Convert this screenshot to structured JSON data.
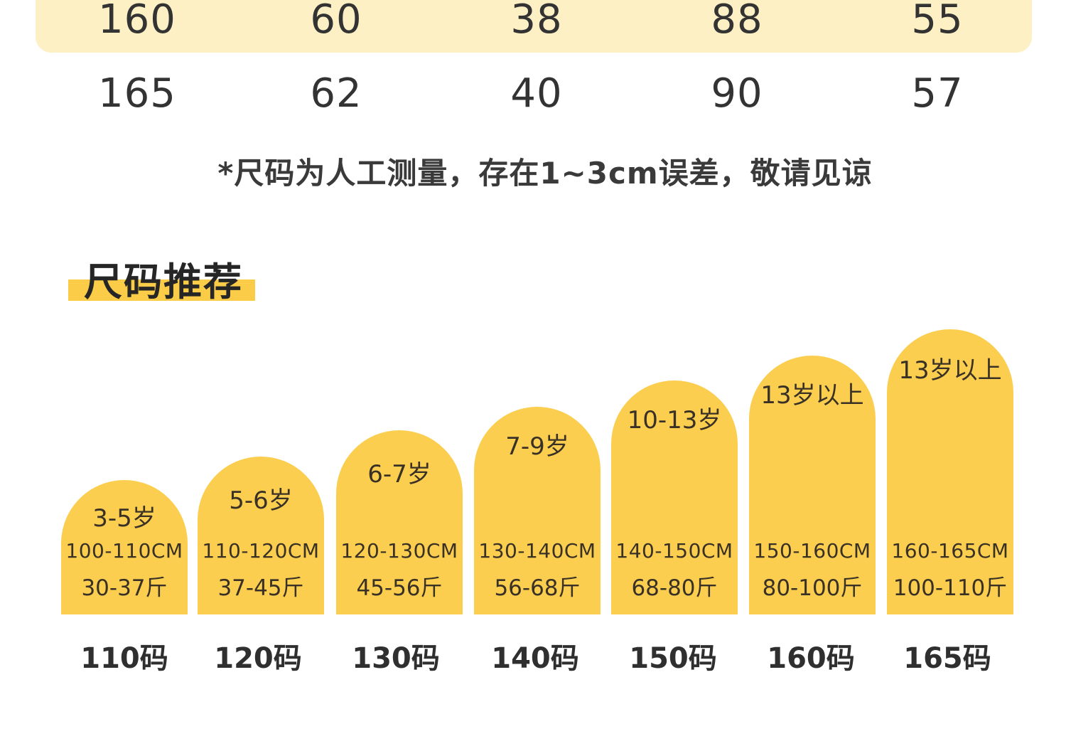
{
  "size_table": {
    "rows": [
      [
        "160",
        "60",
        "38",
        "88",
        "55"
      ],
      [
        "165",
        "62",
        "40",
        "90",
        "57"
      ]
    ]
  },
  "note": "*尺码为人工测量，存在1~3cm误差，敬请见谅",
  "section_title": "尺码推荐",
  "colors": {
    "accent": "#fbce4f",
    "highlight_row": "#fdf0c5",
    "text": "#333333"
  },
  "recommendations": [
    {
      "age": "3-5岁",
      "height": "100-110CM",
      "weight": "30-37斤",
      "size": "110码"
    },
    {
      "age": "5-6岁",
      "height": "110-120CM",
      "weight": "37-45斤",
      "size": "120码"
    },
    {
      "age": "6-7岁",
      "height": "120-130CM",
      "weight": "45-56斤",
      "size": "130码"
    },
    {
      "age": "7-9岁",
      "height": "130-140CM",
      "weight": "56-68斤",
      "size": "140码"
    },
    {
      "age": "10-13岁",
      "height": "140-150CM",
      "weight": "68-80斤",
      "size": "150码"
    },
    {
      "age": "13岁以上",
      "height": "150-160CM",
      "weight": "80-100斤",
      "size": "160码"
    },
    {
      "age": "13岁以上",
      "height": "160-165CM",
      "weight": "100-110斤",
      "size": "165码"
    }
  ]
}
